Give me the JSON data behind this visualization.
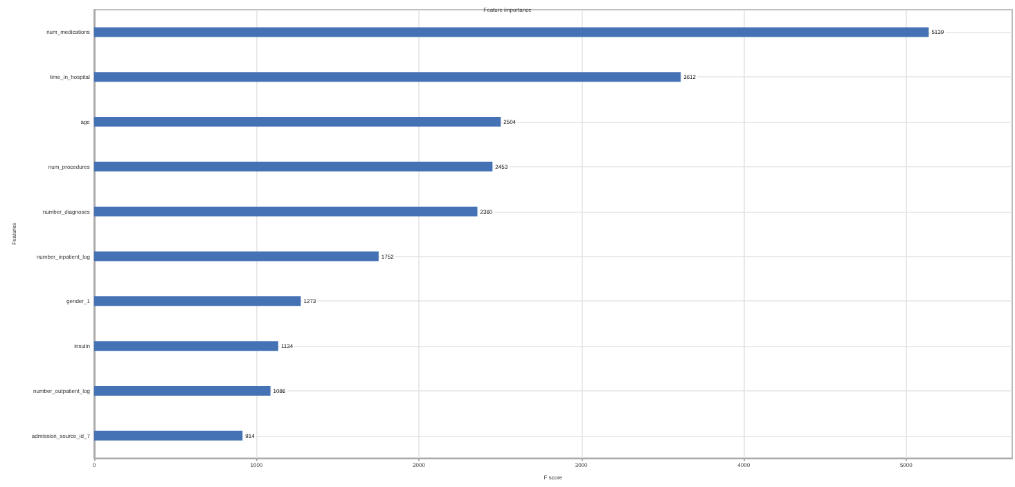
{
  "chart_data": {
    "type": "bar",
    "orientation": "horizontal",
    "title": "Feature importance",
    "xlabel": "F score",
    "ylabel": "Features",
    "categories": [
      "num_medications",
      "time_in_hospital",
      "age",
      "num_procedures",
      "number_diagnoses",
      "number_inpatient_log",
      "gender_1",
      "insulin",
      "number_outpatient_log",
      "admission_source_id_7"
    ],
    "values": [
      5139,
      3612,
      2504,
      2453,
      2360,
      1752,
      1273,
      1134,
      1086,
      914
    ],
    "color": "#4472b4",
    "data_labels": true,
    "xlim": [
      0,
      5653
    ],
    "xticks": [
      0,
      1000,
      2000,
      3000,
      4000,
      5000
    ],
    "grid": true
  }
}
